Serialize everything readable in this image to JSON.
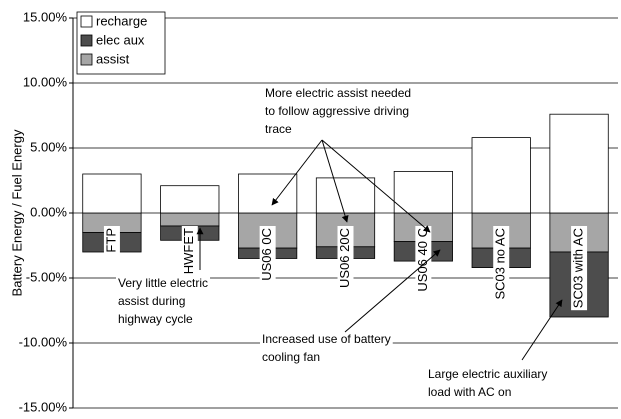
{
  "chart_data": {
    "type": "stacked_bar",
    "ylabel": "Battery Energy / Fuel Energy",
    "categories": [
      "FTP",
      "HWFET",
      "US06 0C",
      "US06 20C",
      "US06 40 C",
      "SC03 no AC",
      "SC03 with AC"
    ],
    "series": [
      {
        "name": "recharge",
        "color": "#ffffff",
        "values": [
          3.0,
          2.1,
          3.0,
          2.7,
          3.2,
          5.8,
          7.6
        ]
      },
      {
        "name": "elec aux",
        "color": "#4d4d4d",
        "values": [
          -1.5,
          -1.1,
          -0.8,
          -0.9,
          -1.5,
          -1.5,
          -5.0
        ]
      },
      {
        "name": "assist",
        "color": "#a6a6a6",
        "values": [
          -1.5,
          -1.0,
          -2.7,
          -2.6,
          -2.2,
          -2.7,
          -3.0
        ]
      }
    ],
    "ylim": [
      -15,
      15
    ],
    "yticks": [
      {
        "value": -15,
        "label": "-15.00%"
      },
      {
        "value": -10,
        "label": "-10.00%"
      },
      {
        "value": -5,
        "label": "-5.00%"
      },
      {
        "value": 0,
        "label": "0.00%"
      },
      {
        "value": 5,
        "label": "5.00%"
      },
      {
        "value": 10,
        "label": "10.00%"
      },
      {
        "value": 15,
        "label": "15.00%"
      }
    ],
    "grid": true,
    "legend": "upper left",
    "annotations": [
      {
        "lines": [
          "More electric assist needed",
          "to follow aggressive driving",
          "trace"
        ]
      },
      {
        "lines": [
          "Very little electric",
          "assist during",
          "highway cycle"
        ]
      },
      {
        "lines": [
          "Increased use of battery",
          "cooling fan"
        ]
      },
      {
        "lines": [
          "Large electric auxiliary",
          "load with AC on"
        ]
      }
    ]
  }
}
